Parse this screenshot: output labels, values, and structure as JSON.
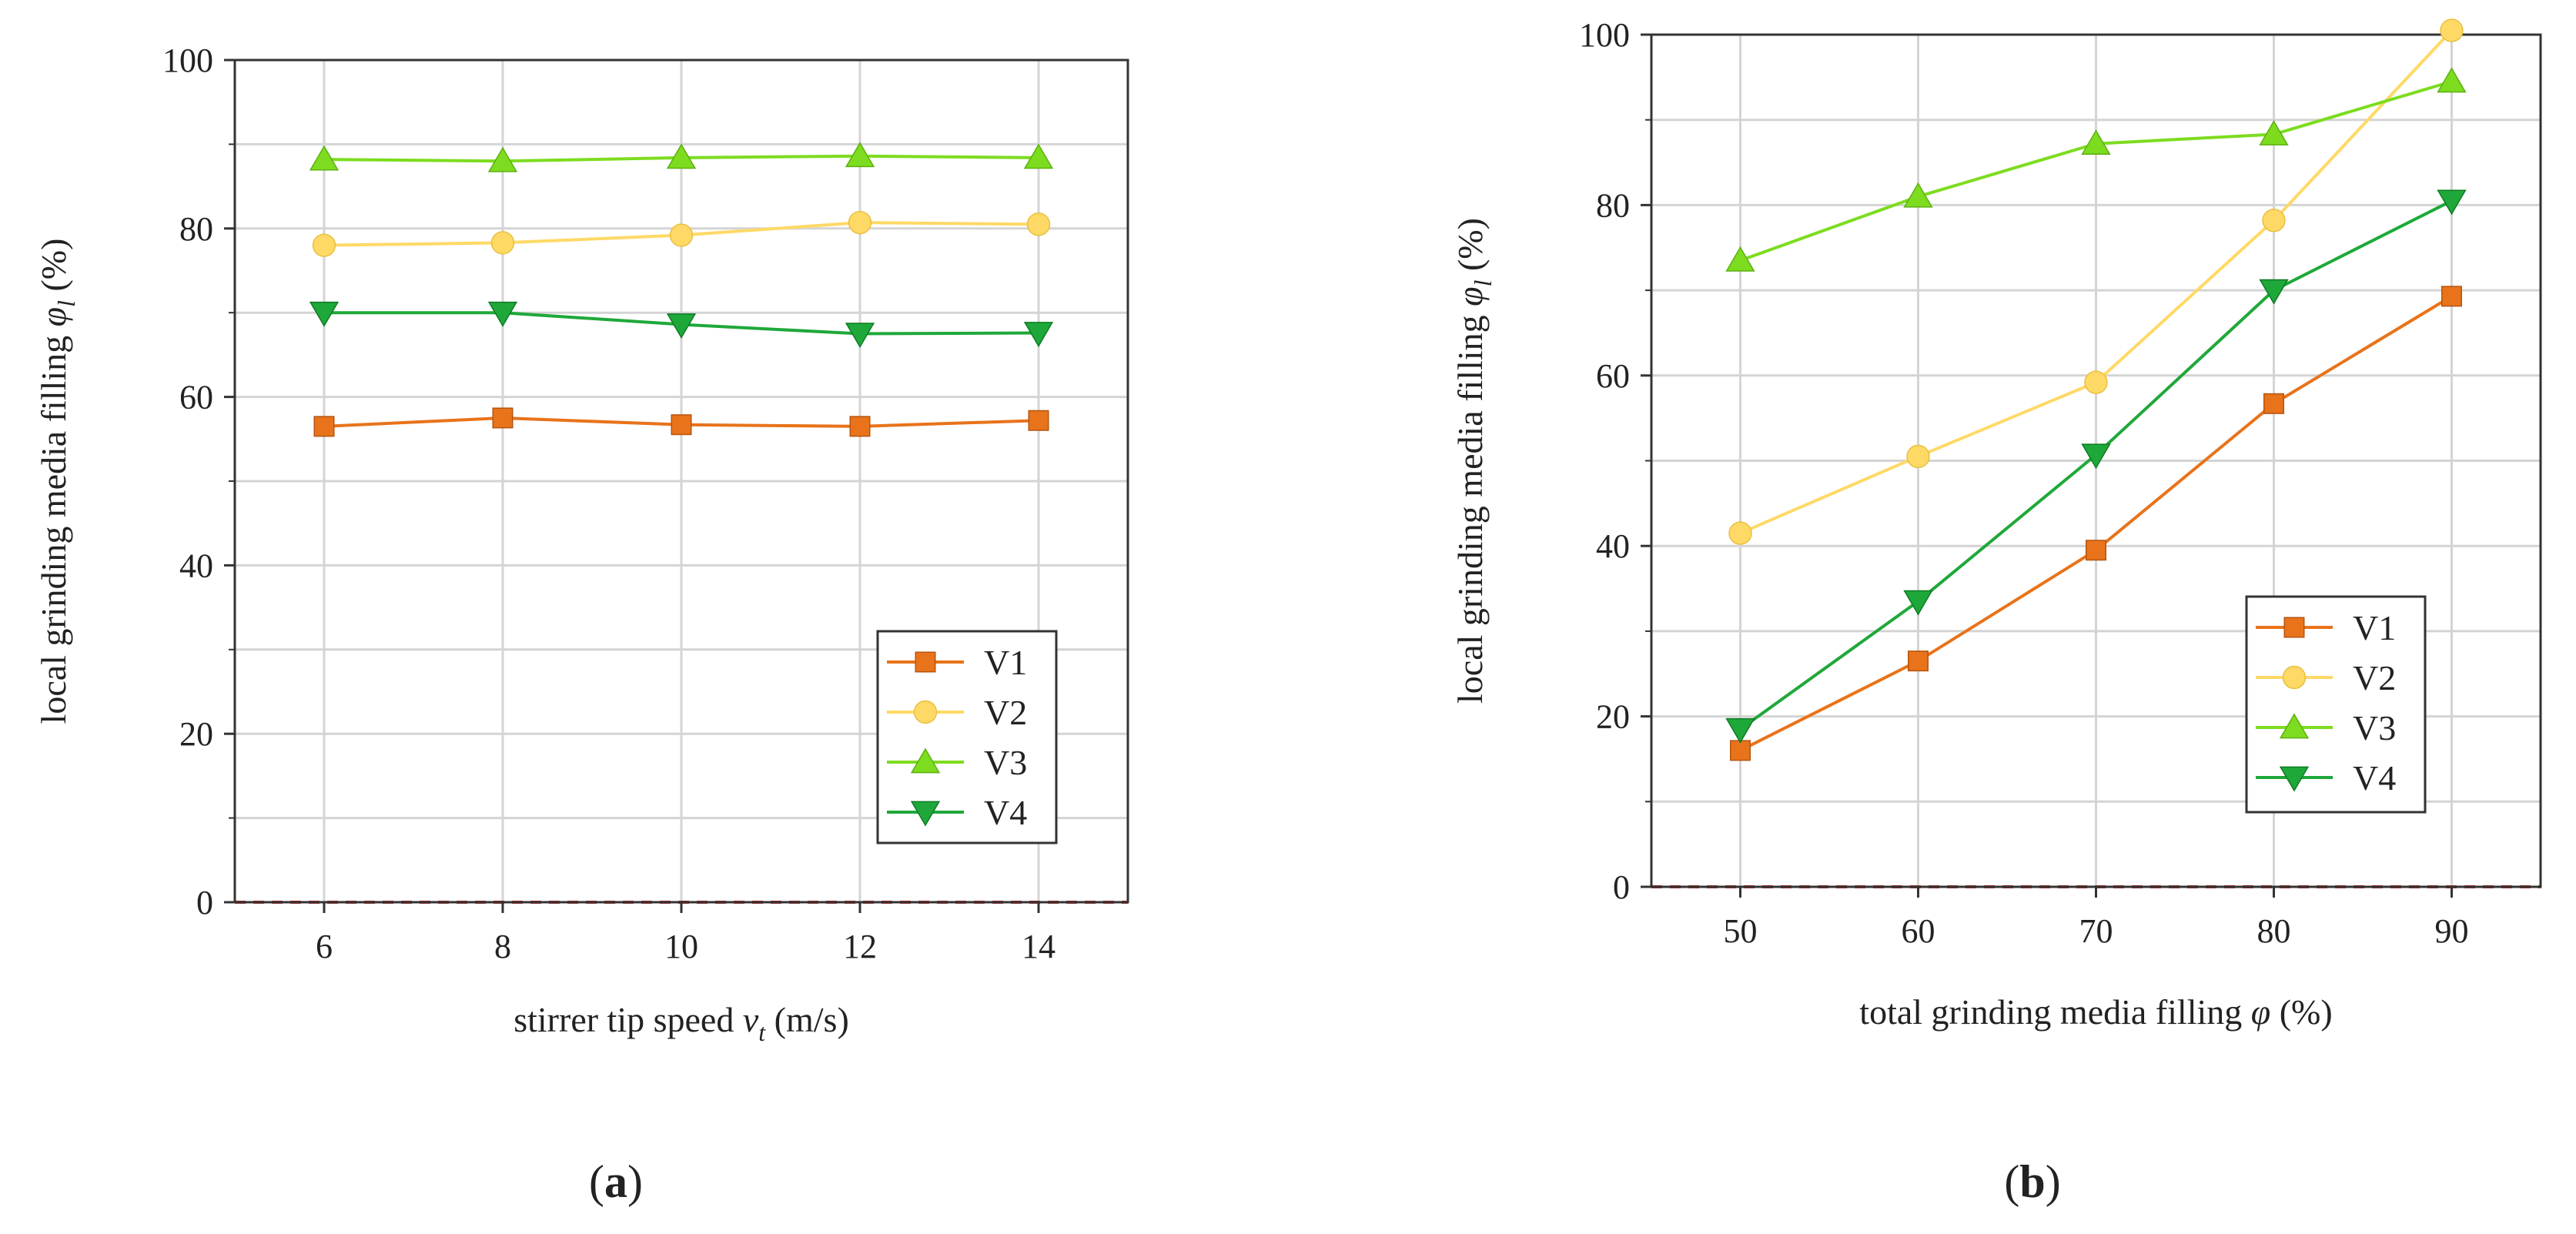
{
  "panel_labels": [
    "(a)",
    "(b)"
  ],
  "chart_data": [
    {
      "type": "line",
      "panel": "a",
      "title": "",
      "xlabel": "stirrer tip speed v_t (m/s)",
      "xlabel_parts": {
        "prefix": "stirrer tip speed ",
        "symbol": "v",
        "subscript": "t",
        "suffix": " (m/s)"
      },
      "ylabel": "local grinding media filling φ_l (%)",
      "ylabel_parts": {
        "prefix": "local grinding media filling ",
        "symbol": "φ",
        "subscript": "l",
        "suffix": " (%)"
      },
      "x": [
        6,
        8,
        10,
        12,
        14
      ],
      "xlim": [
        5,
        15
      ],
      "ylim": [
        0,
        100
      ],
      "xticks": [
        6,
        8,
        10,
        12,
        14
      ],
      "yticks": [
        0,
        20,
        40,
        60,
        80,
        100
      ],
      "grid": true,
      "legend_position": "bottom-right",
      "reference_line": {
        "y": 0,
        "style": "dashed",
        "color": "#cc2222"
      },
      "series": [
        {
          "name": "V1",
          "marker": "square",
          "color": "#e8731a",
          "values": [
            56.5,
            57.5,
            56.7,
            56.5,
            57.2
          ]
        },
        {
          "name": "V2",
          "marker": "circle",
          "color": "#ffd966",
          "values": [
            78.0,
            78.3,
            79.2,
            80.7,
            80.5
          ]
        },
        {
          "name": "V3",
          "marker": "triangle-up",
          "color": "#7ddc1f",
          "values": [
            88.2,
            88.0,
            88.4,
            88.6,
            88.4
          ]
        },
        {
          "name": "V4",
          "marker": "triangle-down",
          "color": "#1fa83a",
          "values": [
            70.0,
            70.0,
            68.6,
            67.5,
            67.6
          ]
        }
      ]
    },
    {
      "type": "line",
      "panel": "b",
      "title": "",
      "xlabel": "total grinding media filling φ (%)",
      "xlabel_parts": {
        "prefix": "total grinding media filling ",
        "symbol": "φ",
        "subscript": "",
        "suffix": " (%)"
      },
      "ylabel": "local grinding media filling φ_l (%)",
      "ylabel_parts": {
        "prefix": "local grinding media filling ",
        "symbol": "φ",
        "subscript": "l",
        "suffix": " (%)"
      },
      "x": [
        50,
        60,
        70,
        80,
        90
      ],
      "xlim": [
        45,
        95
      ],
      "ylim": [
        0,
        100
      ],
      "xticks": [
        50,
        60,
        70,
        80,
        90
      ],
      "yticks": [
        0,
        20,
        40,
        60,
        80,
        100
      ],
      "grid": true,
      "legend_position": "bottom-right",
      "reference_line": {
        "y": 0,
        "style": "dashed",
        "color": "#cc2222"
      },
      "series": [
        {
          "name": "V1",
          "marker": "square",
          "color": "#e8731a",
          "values": [
            16.0,
            26.5,
            39.5,
            56.7,
            69.3
          ]
        },
        {
          "name": "V2",
          "marker": "circle",
          "color": "#ffd966",
          "values": [
            41.5,
            50.5,
            59.2,
            78.2,
            100.5
          ]
        },
        {
          "name": "V3",
          "marker": "triangle-up",
          "color": "#7ddc1f",
          "values": [
            73.5,
            81.0,
            87.2,
            88.3,
            94.5
          ]
        },
        {
          "name": "V4",
          "marker": "triangle-down",
          "color": "#1fa83a",
          "values": [
            18.5,
            33.5,
            50.7,
            70.0,
            80.5
          ]
        }
      ]
    }
  ]
}
